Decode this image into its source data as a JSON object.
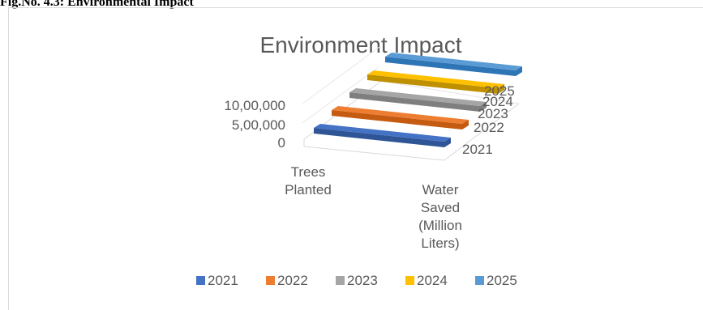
{
  "figure": {
    "caption": "Fig.No. 4.3: Environmental Impact"
  },
  "chart_data": {
    "type": "bar",
    "title": "Environment Impact",
    "categories": [
      "Trees Planted",
      "Water Saved (Million Liters)"
    ],
    "category_lines": [
      [
        "Trees",
        "Planted"
      ],
      [
        "Water",
        "Saved",
        "(Million",
        "Liters)"
      ]
    ],
    "series": [
      {
        "name": "2021",
        "values": [
          0,
          0
        ]
      },
      {
        "name": "2022",
        "values": [
          0,
          0
        ]
      },
      {
        "name": "2023",
        "values": [
          0,
          0
        ]
      },
      {
        "name": "2024",
        "values": [
          0,
          0
        ]
      },
      {
        "name": "2025",
        "values": [
          0,
          0
        ]
      }
    ],
    "y_ticks": [
      "0",
      "5,00,000",
      "10,00,000"
    ],
    "ylim": [
      0,
      1000000
    ],
    "depth_labels": [
      "2021",
      "2022",
      "2023",
      "2024",
      "2025"
    ],
    "legend_position": "bottom",
    "colors": [
      "#4472C4",
      "#ED7D31",
      "#A5A5A5",
      "#FFC000",
      "#5B9BD5"
    ],
    "colors_dark": [
      "#2F5597",
      "#C55A11",
      "#7F7F7F",
      "#BF9000",
      "#2E75B6"
    ]
  }
}
